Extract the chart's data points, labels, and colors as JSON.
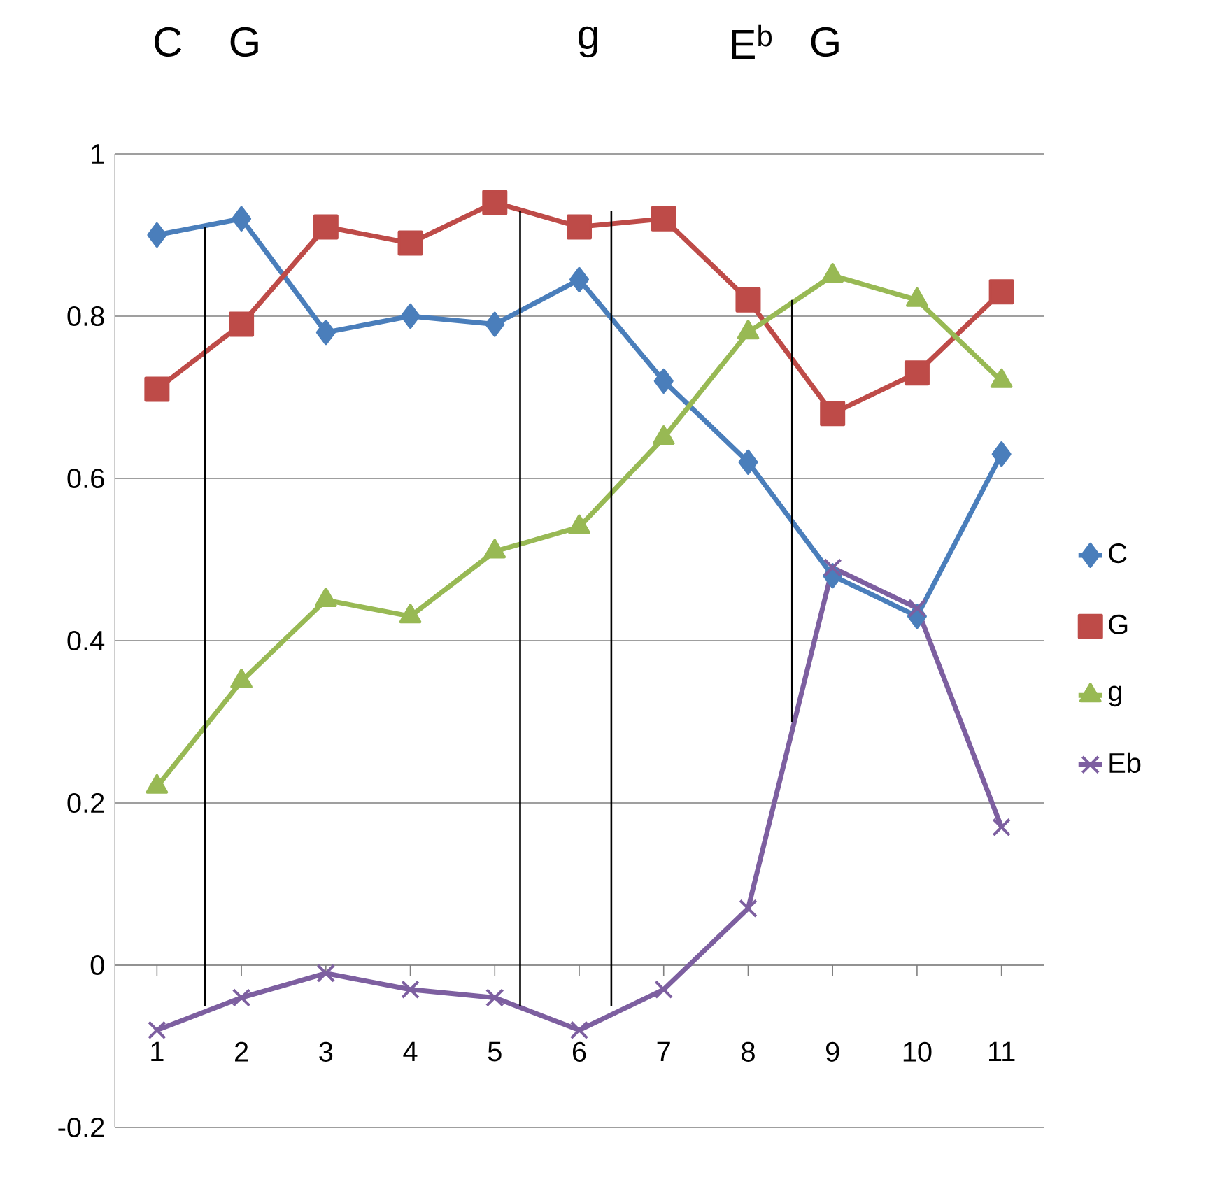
{
  "chart_data": {
    "type": "line",
    "x": [
      1,
      2,
      3,
      4,
      5,
      6,
      7,
      8,
      9,
      10,
      11
    ],
    "series": [
      {
        "name": "C",
        "color": "#4a7ebb",
        "marker": "diamond",
        "values": [
          0.9,
          0.92,
          0.78,
          0.8,
          0.79,
          0.845,
          0.72,
          0.62,
          0.48,
          0.43,
          0.63
        ]
      },
      {
        "name": "G",
        "color": "#be4b48",
        "marker": "square",
        "values": [
          0.71,
          0.79,
          0.91,
          0.89,
          0.94,
          0.91,
          0.92,
          0.82,
          0.68,
          0.73,
          0.83
        ]
      },
      {
        "name": "g",
        "color": "#98b954",
        "marker": "triangle",
        "values": [
          0.22,
          0.35,
          0.45,
          0.43,
          0.51,
          0.54,
          0.65,
          0.78,
          0.85,
          0.82,
          0.72
        ]
      },
      {
        "name": "Eb",
        "color": "#7d5fa0",
        "marker": "cross",
        "values": [
          -0.08,
          -0.04,
          -0.01,
          -0.03,
          -0.04,
          -0.08,
          -0.03,
          0.07,
          0.49,
          0.44,
          0.17
        ]
      },
      {
        "type": "line",
        "color": "#000000",
        "marker": "none",
        "x": [
          1.57,
          1.57
        ],
        "values": [
          0.91,
          -0.05
        ]
      },
      {
        "type": "line",
        "color": "#000000",
        "marker": "none",
        "x": [
          5.3,
          5.3
        ],
        "values": [
          0.93,
          -0.05
        ]
      },
      {
        "type": "line",
        "color": "#000000",
        "marker": "none",
        "x": [
          6.38,
          6.38
        ],
        "values": [
          0.93,
          -0.05
        ]
      },
      {
        "type": "line",
        "color": "#000000",
        "marker": "none",
        "x": [
          8.52,
          8.52
        ],
        "values": [
          0.82,
          0.3
        ]
      }
    ],
    "annotations": [
      "C",
      "G",
      "g",
      "E$^{b}$",
      "G"
    ],
    "xlim": [
      0.5,
      11.5
    ],
    "xticks": [
      1,
      2,
      3,
      4,
      5,
      6,
      7,
      8,
      9,
      10,
      11
    ],
    "ylim": [
      -0.2,
      1
    ],
    "yticks": [
      -0.2,
      0,
      0.2,
      0.4,
      0.6,
      0.8,
      1
    ],
    "grid": "y",
    "legend": "right"
  }
}
